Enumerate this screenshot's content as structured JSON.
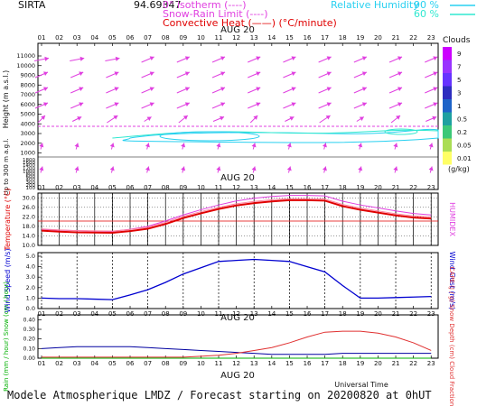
{
  "header": {
    "station": "SIRTA",
    "coords": "94.69347",
    "legend_isotherm": "0° isotherm (----)",
    "legend_snow": "Snow-Rain Limit (----)",
    "legend_convective": "Convective Heat (——) (°C/minute)",
    "legend_rh_label": "Relative Humidity",
    "rh_90": "90 %",
    "rh_60": "60 %"
  },
  "date_label": "AUG 20",
  "universal_time": "Universal Time",
  "footer": "Modele Atmospherique LMDZ / Forecast starting on 20200820 at 0hUT",
  "colors": {
    "isotherm": "#e040e0",
    "wind_arrow": "#e040e0",
    "rh90": "#28d0f0",
    "rh60": "#30e8d0",
    "temp": "#e00000",
    "temp_light": "#ff80a0",
    "humidex": "#e040e0",
    "wind_speed": "#0000d0",
    "rain": "#00b000",
    "cape": "#e03030",
    "grid": "#000000"
  },
  "cloud_scale": {
    "title": "Clouds",
    "unit": "(g/kg)",
    "levels": [
      "9",
      "7",
      "5",
      "3",
      "1",
      "0.5",
      "0.2",
      "0.05",
      "0.01"
    ],
    "colors": [
      "#cc00ff",
      "#9933ff",
      "#6633ff",
      "#2d2dbf",
      "#1e64c8",
      "#1ea0a0",
      "#3cc878",
      "#aadd55",
      "#ffff66"
    ]
  },
  "chart_data": [
    {
      "type": "heatmap",
      "title": "",
      "xlabel": "",
      "ylabel": "Height (m a.s.l.)",
      "ylabel_secondary": "Up to 300 m a.g.l.",
      "x": [
        1,
        2,
        3,
        4,
        5,
        6,
        7,
        8,
        9,
        10,
        11,
        12,
        13,
        14,
        15,
        16,
        17,
        18,
        19,
        20,
        21,
        22,
        23
      ],
      "x_tick_labels": [
        "01",
        "02",
        "03",
        "04",
        "05",
        "06",
        "07",
        "08",
        "09",
        "10",
        "11",
        "12",
        "13",
        "14",
        "15",
        "16",
        "17",
        "18",
        "19",
        "20",
        "21",
        "22",
        "23"
      ],
      "y_ticks_high": [
        11000,
        10000,
        9000,
        8000,
        7000,
        6000,
        5000,
        4000,
        3000,
        2000,
        1000
      ],
      "y_ticks_low": [
        1800,
        1600,
        1400,
        1200,
        1000,
        800,
        600,
        400,
        300,
        200,
        100
      ],
      "zero_isotherm_m": 3700,
      "wind_barbs": {
        "times": [
          1,
          3,
          5,
          7,
          9,
          11,
          13,
          15,
          17,
          19,
          21,
          23
        ],
        "levels_m": [
          10500,
          9000,
          7500,
          6000,
          4500,
          2000,
          1000
        ],
        "note": "arrows drawn pointing toward north-east at upper levels"
      },
      "rh_contours": [
        {
          "level": "90 %",
          "from": 6,
          "to": 23,
          "height_m": 3000
        },
        {
          "level": "60 %",
          "from": 5,
          "to": 23,
          "height_m": 2950
        }
      ]
    },
    {
      "type": "line",
      "title": "",
      "xlabel": "",
      "ylabel": "Temperature (°C)",
      "ylabel_right": "HUMIDEX",
      "x": [
        1,
        2,
        3,
        4,
        5,
        6,
        7,
        8,
        9,
        10,
        11,
        12,
        13,
        14,
        15,
        16,
        17,
        18,
        19,
        20,
        21,
        22,
        23
      ],
      "x_tick_labels": [
        "01",
        "02",
        "03",
        "04",
        "05",
        "06",
        "07",
        "08",
        "09",
        "10",
        "11",
        "12",
        "13",
        "14",
        "15",
        "16",
        "17",
        "18",
        "19",
        "20",
        "21",
        "22",
        "23"
      ],
      "y_tick_labels": [
        "10.0",
        "14.0",
        "18.0",
        "22.0",
        "26.0",
        "30.0"
      ],
      "ylim": [
        10,
        32
      ],
      "series": [
        {
          "name": "Temperature",
          "values": [
            16.2,
            15.8,
            15.5,
            15.4,
            15.3,
            16.0,
            17.0,
            19.0,
            21.5,
            23.5,
            25.3,
            26.8,
            27.8,
            28.5,
            29.0,
            29.0,
            28.8,
            26.5,
            25.0,
            23.8,
            22.6,
            21.7,
            21.3
          ]
        },
        {
          "name": "HUMIDEX",
          "values": [
            16.8,
            16.4,
            16.2,
            16.0,
            15.9,
            16.8,
            18.0,
            20.3,
            22.8,
            25.0,
            27.0,
            28.7,
            29.8,
            30.6,
            31.0,
            31.0,
            30.8,
            28.6,
            27.0,
            25.8,
            24.5,
            23.4,
            22.8
          ]
        }
      ]
    },
    {
      "type": "line",
      "title": "",
      "xlabel": "",
      "ylabel": "Wind Speed (m/s)",
      "ylabel_right": "Wind Gust (m/s)",
      "x": [
        1,
        2,
        3,
        4,
        5,
        6,
        7,
        8,
        9,
        10,
        11,
        12,
        13,
        14,
        15,
        16,
        17,
        18,
        19,
        20,
        21,
        22,
        23
      ],
      "x_tick_labels": [
        "01",
        "02",
        "03",
        "04",
        "05",
        "06",
        "07",
        "08",
        "09",
        "10",
        "11",
        "12",
        "13",
        "14",
        "15",
        "16",
        "17",
        "18",
        "19",
        "20",
        "21",
        "22",
        "23"
      ],
      "y_tick_labels": [
        "0.0",
        "1.0",
        "2.0",
        "3.0",
        "4.0",
        "5.0"
      ],
      "ylim": [
        0,
        5
      ],
      "series": [
        {
          "name": "Wind Speed",
          "values": [
            1.0,
            0.95,
            0.95,
            0.9,
            0.85,
            1.3,
            1.8,
            2.5,
            3.3,
            3.9,
            4.5,
            4.6,
            4.7,
            4.6,
            4.5,
            4.0,
            3.5,
            2.2,
            1.0,
            1.0,
            1.05,
            1.1,
            1.15
          ]
        }
      ]
    },
    {
      "type": "line",
      "title": "",
      "xlabel": "Universal Time",
      "ylabel": "Rain (mm / hour) Snow (cm / hour)",
      "ylabel_right": "CAPE (J / g) Snow Depth (cm) Cloud Fraction",
      "x": [
        1,
        2,
        3,
        4,
        5,
        6,
        7,
        8,
        9,
        10,
        11,
        12,
        13,
        14,
        15,
        16,
        17,
        18,
        19,
        20,
        21,
        22,
        23
      ],
      "x_tick_labels": [
        "01",
        "02",
        "03",
        "04",
        "05",
        "06",
        "07",
        "08",
        "09",
        "10",
        "11",
        "12",
        "13",
        "14",
        "15",
        "16",
        "17",
        "18",
        "19",
        "20",
        "21",
        "22",
        "23"
      ],
      "y_tick_labels": [
        "0.00",
        "0.10",
        "0.20",
        "0.30",
        "0.40"
      ],
      "ylim": [
        0,
        0.45
      ],
      "series": [
        {
          "name": "Rain",
          "values": [
            0,
            0,
            0,
            0,
            0,
            0,
            0,
            0,
            0,
            0,
            0,
            0,
            0,
            0,
            0,
            0,
            0,
            0,
            0,
            0,
            0,
            0,
            0
          ]
        },
        {
          "name": "CAPE",
          "values": [
            0.01,
            0.01,
            0.01,
            0.01,
            0.01,
            0.01,
            0.01,
            0.01,
            0.01,
            0.02,
            0.03,
            0.05,
            0.08,
            0.11,
            0.16,
            0.22,
            0.27,
            0.28,
            0.28,
            0.26,
            0.22,
            0.16,
            0.08
          ]
        },
        {
          "name": "Cloud Fraction",
          "values": [
            0.1,
            0.11,
            0.12,
            0.12,
            0.12,
            0.12,
            0.11,
            0.1,
            0.09,
            0.08,
            0.07,
            0.06,
            0.05,
            0.04,
            0.04,
            0.04,
            0.04,
            0.05,
            0.05,
            0.05,
            0.05,
            0.05,
            0.05
          ]
        }
      ]
    }
  ]
}
